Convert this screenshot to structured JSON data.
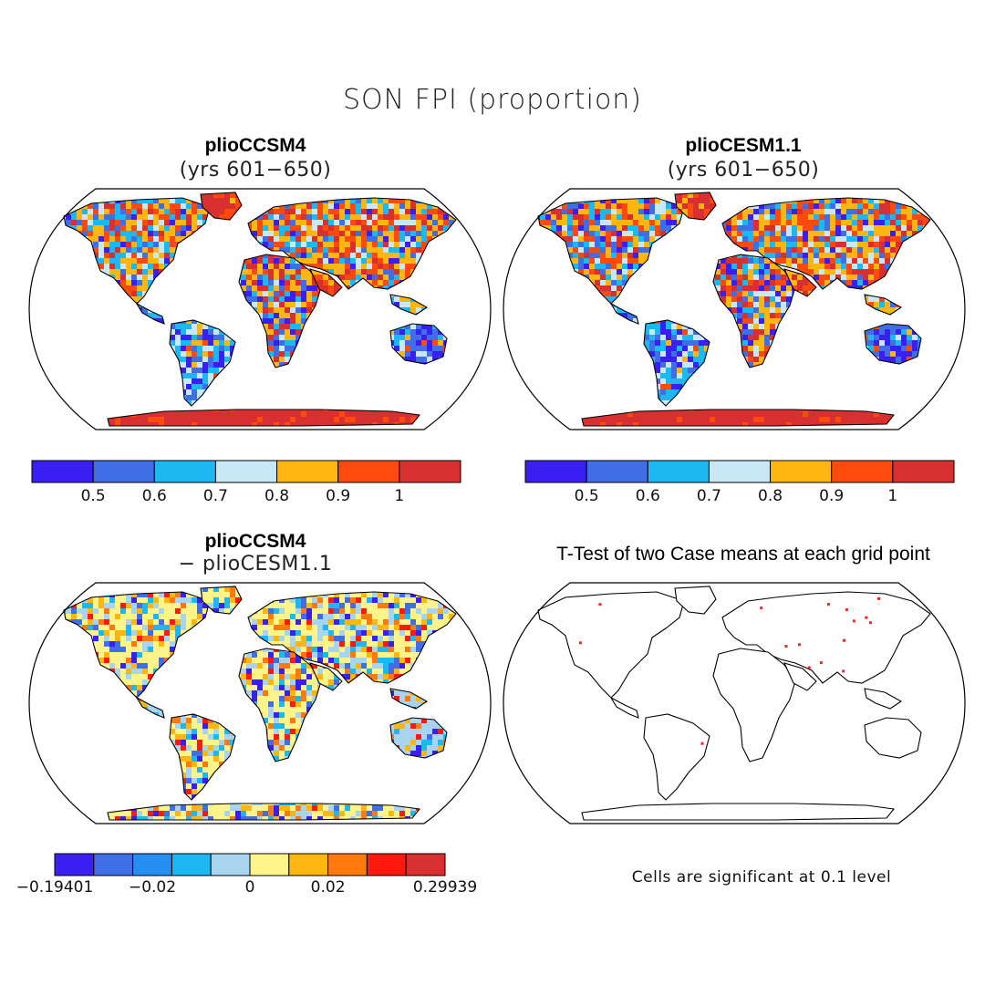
{
  "title": "SON FPI (proportion)",
  "panels": {
    "top_left": {
      "title": "plioCCSM4",
      "subtitle": "(yrs 601−650)"
    },
    "top_right": {
      "title": "plioCESM1.1",
      "subtitle": "(yrs 601−650)"
    },
    "bottom_left": {
      "title": "plioCCSM4",
      "subtitle": "− plioCESM1.1"
    },
    "bottom_right": {
      "title": "T-Test of two Case means at each grid point"
    }
  },
  "colorbar_top": {
    "colors": [
      "#3a1ff2",
      "#3f6ee6",
      "#1cb8f2",
      "#c8e8f6",
      "#ffb70f",
      "#ff4a0e",
      "#d83030"
    ],
    "ticks": [
      "0.5",
      "0.6",
      "0.7",
      "0.8",
      "0.9",
      "1"
    ]
  },
  "colorbar_bottom": {
    "colors": [
      "#3a1ff2",
      "#3f6ee6",
      "#268ef0",
      "#1cb8f2",
      "#a8d4f0",
      "#fff48a",
      "#ffb70f",
      "#ff7a0e",
      "#ff1a10",
      "#d83030"
    ],
    "ticks": [
      "−0.19401",
      "−0.02",
      "0",
      "0.02",
      "0.29939"
    ]
  },
  "note": "Cells are significant at 0.1 level"
}
